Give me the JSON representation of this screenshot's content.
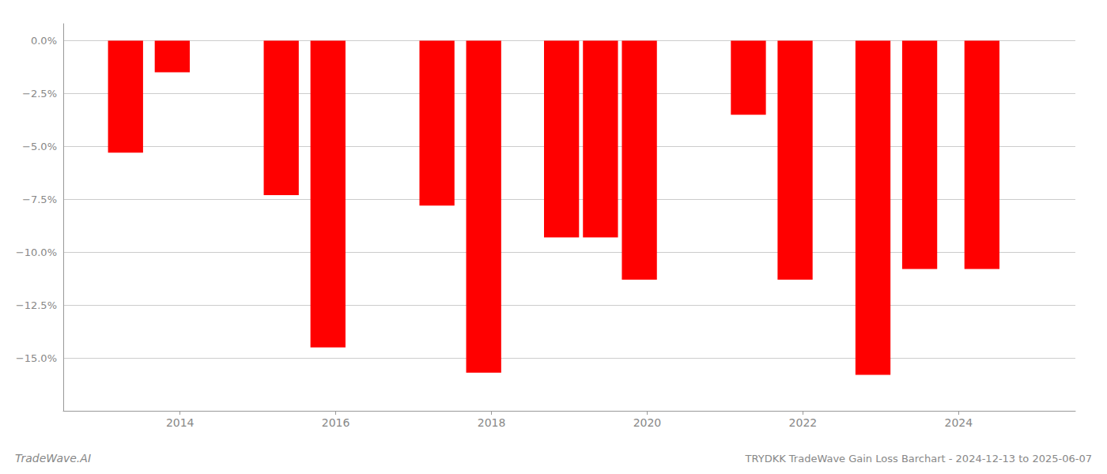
{
  "chart_data": {
    "type": "bar",
    "title": "TRYDKK TradeWave Gain Loss Barchart - 2024-12-13 to 2025-06-07",
    "annotations": [
      "TradeWave.AI"
    ],
    "x": [
      2013.3,
      2013.9,
      2015.3,
      2015.9,
      2017.3,
      2017.9,
      2018.9,
      2019.4,
      2019.9,
      2021.3,
      2021.9,
      2022.9,
      2023.5,
      2024.3
    ],
    "values": [
      -5.3,
      -1.5,
      -7.3,
      -14.5,
      -7.8,
      -15.7,
      -9.3,
      -9.3,
      -11.3,
      -3.5,
      -11.3,
      -15.8,
      -10.8,
      -10.8
    ],
    "color": "#ff0000",
    "xlim": [
      2012.5,
      2025.5
    ],
    "xticks": [
      2014,
      2016,
      2018,
      2020,
      2022,
      2024
    ],
    "ylim": [
      -17.5,
      0.8
    ],
    "yticks": [
      {
        "value": 0.0,
        "label": "0.0%"
      },
      {
        "value": -2.5,
        "label": "−2.5%"
      },
      {
        "value": -5.0,
        "label": "−5.0%"
      },
      {
        "value": -7.5,
        "label": "−7.5%"
      },
      {
        "value": -10.0,
        "label": "−10.0%"
      },
      {
        "value": -12.5,
        "label": "−12.5%"
      },
      {
        "value": -15.0,
        "label": "−15.0%"
      }
    ],
    "grid": true
  }
}
